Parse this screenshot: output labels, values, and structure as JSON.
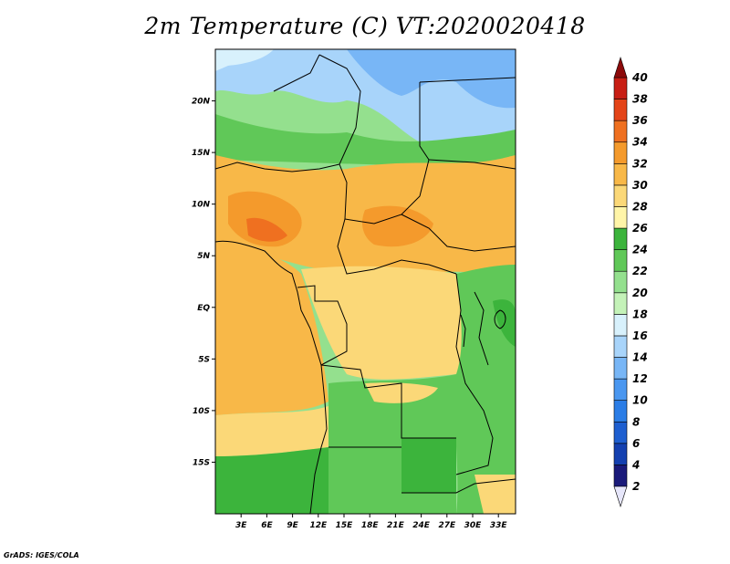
{
  "title": "2m Temperature (C) VT:2020020418",
  "credit": "GrADS: IGES/COLA",
  "map": {
    "lat_range": [
      -20,
      25
    ],
    "lon_range": [
      0,
      35
    ],
    "lat_ticks": [
      {
        "value": 20,
        "label": "20N"
      },
      {
        "value": 15,
        "label": "15N"
      },
      {
        "value": 10,
        "label": "10N"
      },
      {
        "value": 5,
        "label": "5N"
      },
      {
        "value": 0,
        "label": "EQ"
      },
      {
        "value": -5,
        "label": "5S"
      },
      {
        "value": -10,
        "label": "10S"
      },
      {
        "value": -15,
        "label": "15S"
      }
    ],
    "lon_ticks": [
      {
        "value": 3,
        "label": "3E"
      },
      {
        "value": 6,
        "label": "6E"
      },
      {
        "value": 9,
        "label": "9E"
      },
      {
        "value": 12,
        "label": "12E"
      },
      {
        "value": 15,
        "label": "15E"
      },
      {
        "value": 18,
        "label": "18E"
      },
      {
        "value": 21,
        "label": "21E"
      },
      {
        "value": 24,
        "label": "24E"
      },
      {
        "value": 27,
        "label": "27E"
      },
      {
        "value": 30,
        "label": "30E"
      },
      {
        "value": 33,
        "label": "33E"
      }
    ]
  },
  "colorbar": {
    "levels": [
      {
        "label": "2",
        "color": "#ffffff"
      },
      {
        "label": "4",
        "color": "#1a1a7a"
      },
      {
        "label": "6",
        "color": "#1440b0"
      },
      {
        "label": "8",
        "color": "#1e5fd0"
      },
      {
        "label": "10",
        "color": "#2b7de6"
      },
      {
        "label": "12",
        "color": "#4a97f0"
      },
      {
        "label": "14",
        "color": "#78b6f6"
      },
      {
        "label": "16",
        "color": "#a8d4fa"
      },
      {
        "label": "18",
        "color": "#d8f1fc"
      },
      {
        "label": "20",
        "color": "#c4f2b8"
      },
      {
        "label": "22",
        "color": "#94e08e"
      },
      {
        "label": "24",
        "color": "#60c858"
      },
      {
        "label": "26",
        "color": "#3cb43c"
      },
      {
        "label": "28",
        "color": "#fff5a8"
      },
      {
        "label": "30",
        "color": "#fbd878"
      },
      {
        "label": "32",
        "color": "#f8b848"
      },
      {
        "label": "34",
        "color": "#f49a2c"
      },
      {
        "label": "36",
        "color": "#ef7020"
      },
      {
        "label": "38",
        "color": "#e44418"
      },
      {
        "label": "40",
        "color": "#c81e14"
      }
    ],
    "over_color": "#8c0a0a",
    "under_color": "#e6e6fa"
  }
}
